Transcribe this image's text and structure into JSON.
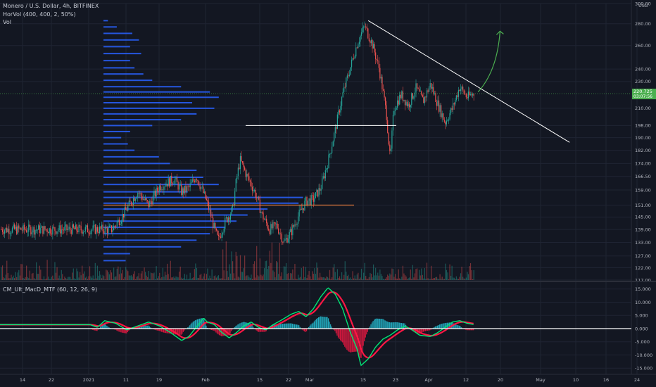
{
  "header": {
    "symbol_line": "Monero / U.S. Dollar, 4h, BITFINEX",
    "horvol_line": "HorVol (400, 400, 2, 50%)",
    "vol_line": "Vol"
  },
  "macd_panel": {
    "label": "CM_Ult_MacD_MTF (60, 12, 26, 9)"
  },
  "colors": {
    "background": "#131722",
    "grid": "#1f2433",
    "up": "#26a69a",
    "down": "#ef5350",
    "profile": "#2962ff",
    "poc_line": "#e07a3f",
    "trendline": "#ffffff",
    "projection": "#4caf50",
    "macd_up": "#00e676",
    "macd_down": "#ff1744",
    "hist_up": "#26c6da",
    "hist_down": "#ff1744",
    "price_tag": "#4caf50"
  },
  "chart_data": [
    {
      "type": "line",
      "title": "Monero / U.S. Dollar, 4h, BITFINEX",
      "currency_label": "USD",
      "y_scale": "log",
      "y_ticks": [
        117.0,
        122.0,
        127.0,
        133.0,
        139.0,
        145.0,
        151.0,
        159.0,
        166.5,
        174.0,
        182.0,
        190.0,
        198.0,
        210.0,
        220.725,
        230.0,
        240.0,
        260.0,
        280.0,
        300.0
      ],
      "y_tick_labels": [
        "117.00",
        "122.00",
        "127.00",
        "133.00",
        "139.00",
        "145.00",
        "151.00",
        "159.00",
        "166.50",
        "174.00",
        "182.00",
        "190.00",
        "198.00",
        "210.00",
        "220.725",
        "230.00",
        "240.00",
        "260.00",
        "280.00",
        "300.00"
      ],
      "x_labels": [
        "14",
        "22",
        "2021",
        "11",
        "19",
        "Feb",
        "15",
        "22",
        "Mar",
        "15",
        "23",
        "Apr",
        "12",
        "20",
        "May",
        "10",
        "16",
        "24"
      ],
      "last_price": "220.725",
      "countdown": "03:07:56",
      "price_path": [
        [
          "2021-01-07",
          139
        ],
        [
          "2021-01-10",
          146
        ],
        [
          "2021-01-12",
          152
        ],
        [
          "2021-01-14",
          158
        ],
        [
          "2021-01-17",
          151
        ],
        [
          "2021-01-20",
          161
        ],
        [
          "2021-01-24",
          165
        ],
        [
          "2021-01-26",
          158
        ],
        [
          "2021-01-28",
          160
        ],
        [
          "2021-01-30",
          167
        ],
        [
          "2021-02-02",
          152
        ],
        [
          "2021-02-04",
          139
        ],
        [
          "2021-02-05",
          134
        ],
        [
          "2021-02-07",
          143
        ],
        [
          "2021-02-09",
          149
        ],
        [
          "2021-02-10",
          165
        ],
        [
          "2021-02-11",
          176
        ],
        [
          "2021-02-13",
          166
        ],
        [
          "2021-02-15",
          158
        ],
        [
          "2021-02-17",
          146
        ],
        [
          "2021-02-19",
          139
        ],
        [
          "2021-02-21",
          141
        ],
        [
          "2021-02-23",
          133
        ],
        [
          "2021-02-25",
          138
        ],
        [
          "2021-02-27",
          146
        ],
        [
          "2021-03-01",
          153
        ],
        [
          "2021-03-03",
          154
        ],
        [
          "2021-03-05",
          160
        ],
        [
          "2021-03-07",
          175
        ],
        [
          "2021-03-09",
          195
        ],
        [
          "2021-03-11",
          220
        ],
        [
          "2021-03-13",
          240
        ],
        [
          "2021-03-15",
          262
        ],
        [
          "2021-03-17",
          278
        ],
        [
          "2021-03-19",
          262
        ],
        [
          "2021-03-21",
          240
        ],
        [
          "2021-03-23",
          205
        ],
        [
          "2021-03-24",
          175
        ],
        [
          "2021-03-25",
          210
        ],
        [
          "2021-03-27",
          220
        ],
        [
          "2021-03-29",
          212
        ],
        [
          "2021-03-31",
          225
        ],
        [
          "2021-04-02",
          215
        ],
        [
          "2021-04-04",
          228
        ],
        [
          "2021-04-06",
          213
        ],
        [
          "2021-04-08",
          200
        ],
        [
          "2021-04-10",
          210
        ],
        [
          "2021-04-12",
          226
        ],
        [
          "2021-04-14",
          218
        ],
        [
          "2021-04-16",
          221
        ]
      ],
      "annotations": {
        "descending_trendline": [
          [
            "2021-03-18",
            283
          ],
          [
            "2021-05-12",
            187
          ]
        ],
        "support_line": 198,
        "poc_line": 151,
        "projection_arrow": [
          [
            "2021-04-17",
            222
          ],
          [
            "2021-04-23",
            273
          ]
        ]
      },
      "volume_profile": [
        {
          "price": 283,
          "width": 0.02
        },
        {
          "price": 277,
          "width": 0.06
        },
        {
          "price": 271,
          "width": 0.13
        },
        {
          "price": 265,
          "width": 0.16
        },
        {
          "price": 259,
          "width": 0.12
        },
        {
          "price": 253,
          "width": 0.17
        },
        {
          "price": 247,
          "width": 0.12
        },
        {
          "price": 241,
          "width": 0.14
        },
        {
          "price": 236,
          "width": 0.18
        },
        {
          "price": 231,
          "width": 0.22
        },
        {
          "price": 226,
          "width": 0.35
        },
        {
          "price": 222,
          "width": 0.48
        },
        {
          "price": 218,
          "width": 0.52
        },
        {
          "price": 214,
          "width": 0.4
        },
        {
          "price": 210,
          "width": 0.5
        },
        {
          "price": 206,
          "width": 0.42
        },
        {
          "price": 202,
          "width": 0.35
        },
        {
          "price": 198,
          "width": 0.22
        },
        {
          "price": 194,
          "width": 0.12
        },
        {
          "price": 190,
          "width": 0.08
        },
        {
          "price": 186,
          "width": 0.11
        },
        {
          "price": 182,
          "width": 0.14
        },
        {
          "price": 178,
          "width": 0.25
        },
        {
          "price": 174,
          "width": 0.3
        },
        {
          "price": 170,
          "width": 0.42
        },
        {
          "price": 166,
          "width": 0.45
        },
        {
          "price": 162,
          "width": 0.52
        },
        {
          "price": 158,
          "width": 0.38
        },
        {
          "price": 155,
          "width": 0.9
        },
        {
          "price": 152,
          "width": 0.88
        },
        {
          "price": 149,
          "width": 0.74
        },
        {
          "price": 146,
          "width": 0.65
        },
        {
          "price": 143,
          "width": 0.6
        },
        {
          "price": 140,
          "width": 0.55
        },
        {
          "price": 137,
          "width": 0.48
        },
        {
          "price": 134,
          "width": 0.42
        },
        {
          "price": 131,
          "width": 0.35
        },
        {
          "price": 128,
          "width": 0.12
        },
        {
          "price": 125,
          "width": 0.1
        }
      ]
    },
    {
      "type": "line",
      "title": "CM_Ult_MacD_MTF (60, 12, 26, 9)",
      "y_ticks": [
        15.0,
        10.0,
        5.0,
        0.0,
        -5.0,
        -10.0,
        -15.0
      ],
      "y_tick_labels": [
        "15.000",
        "10.000",
        "5.000",
        "0.000",
        "-5.000",
        "-10.000",
        "-15.000"
      ],
      "macd_path": [
        [
          "2021-01-01",
          1.5
        ],
        [
          "2021-01-03",
          0.5
        ],
        [
          "2021-01-05",
          3.0
        ],
        [
          "2021-01-08",
          2.0
        ],
        [
          "2021-01-11",
          -0.5
        ],
        [
          "2021-01-14",
          1.0
        ],
        [
          "2021-01-17",
          2.5
        ],
        [
          "2021-01-20",
          1.0
        ],
        [
          "2021-01-23",
          -1.5
        ],
        [
          "2021-01-26",
          -4.5
        ],
        [
          "2021-01-28",
          -3.0
        ],
        [
          "2021-01-30",
          0.5
        ],
        [
          "2021-02-01",
          4.0
        ],
        [
          "2021-02-02",
          2.5
        ],
        [
          "2021-02-04",
          1.5
        ],
        [
          "2021-02-06",
          -1.5
        ],
        [
          "2021-02-08",
          -3.5
        ],
        [
          "2021-02-10",
          -1.5
        ],
        [
          "2021-02-12",
          1.0
        ],
        [
          "2021-02-14",
          2.5
        ],
        [
          "2021-02-16",
          0.5
        ],
        [
          "2021-02-18",
          -0.5
        ],
        [
          "2021-02-20",
          1.5
        ],
        [
          "2021-02-22",
          3.0
        ],
        [
          "2021-02-25",
          5.5
        ],
        [
          "2021-02-27",
          6.5
        ],
        [
          "2021-03-01",
          4.5
        ],
        [
          "2021-03-03",
          7.5
        ],
        [
          "2021-03-05",
          12.0
        ],
        [
          "2021-03-07",
          15.5
        ],
        [
          "2021-03-09",
          13.0
        ],
        [
          "2021-03-11",
          7.5
        ],
        [
          "2021-03-13",
          -1.0
        ],
        [
          "2021-03-15",
          -8.0
        ],
        [
          "2021-03-16",
          -14.0
        ],
        [
          "2021-03-18",
          -11.5
        ],
        [
          "2021-03-20",
          -7.0
        ],
        [
          "2021-03-22",
          -4.0
        ],
        [
          "2021-03-24",
          -2.5
        ],
        [
          "2021-03-26",
          -0.5
        ],
        [
          "2021-03-28",
          1.0
        ],
        [
          "2021-03-30",
          -0.5
        ],
        [
          "2021-04-01",
          -2.5
        ],
        [
          "2021-04-04",
          -3.0
        ],
        [
          "2021-04-06",
          -1.5
        ],
        [
          "2021-04-08",
          0.5
        ],
        [
          "2021-04-10",
          2.5
        ],
        [
          "2021-04-12",
          3.0
        ],
        [
          "2021-04-14",
          2.0
        ],
        [
          "2021-04-16",
          1.5
        ]
      ],
      "zero_line": 0
    }
  ]
}
